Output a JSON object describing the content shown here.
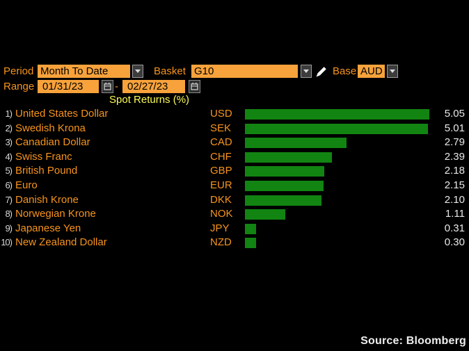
{
  "controls": {
    "period_label": "Period",
    "period_value": "Month To Date",
    "basket_label": "Basket",
    "basket_value": "G10",
    "base_label": "Base",
    "base_value": "AUD",
    "range_label": "Range",
    "range_start": "01/31/23",
    "range_separator": "-",
    "range_end": "02/27/23"
  },
  "icons": {
    "dropdown": "chevron-down-icon",
    "edit": "pencil-icon",
    "calendar": "calendar-icon"
  },
  "chart_data": {
    "type": "bar",
    "orientation": "horizontal",
    "title": "Spot Returns (%)",
    "xlabel": "",
    "ylabel": "",
    "xlim": [
      0,
      5.05
    ],
    "grid": false,
    "bar_color": "#128412",
    "value_decimals": 2,
    "categories": [
      "United States Dollar",
      "Swedish Krona",
      "Canadian Dollar",
      "Swiss Franc",
      "British Pound",
      "Euro",
      "Danish Krone",
      "Norwegian Krone",
      "Japanese Yen",
      "New Zealand Dollar"
    ],
    "codes": [
      "USD",
      "SEK",
      "CAD",
      "CHF",
      "GBP",
      "EUR",
      "DKK",
      "NOK",
      "JPY",
      "NZD"
    ],
    "values": [
      5.05,
      5.01,
      2.79,
      2.39,
      2.18,
      2.15,
      2.1,
      1.11,
      0.31,
      0.3
    ],
    "rows": [
      {
        "rank": "1)",
        "name": "United States Dollar",
        "code": "USD",
        "value": 5.05
      },
      {
        "rank": "2)",
        "name": "Swedish Krona",
        "code": "SEK",
        "value": 5.01
      },
      {
        "rank": "3)",
        "name": "Canadian Dollar",
        "code": "CAD",
        "value": 2.79
      },
      {
        "rank": "4)",
        "name": "Swiss Franc",
        "code": "CHF",
        "value": 2.39
      },
      {
        "rank": "5)",
        "name": "British Pound",
        "code": "GBP",
        "value": 2.18
      },
      {
        "rank": "6)",
        "name": "Euro",
        "code": "EUR",
        "value": 2.15
      },
      {
        "rank": "7)",
        "name": "Danish Krone",
        "code": "DKK",
        "value": 2.1
      },
      {
        "rank": "8)",
        "name": "Norwegian Krone",
        "code": "NOK",
        "value": 1.11
      },
      {
        "rank": "9)",
        "name": "Japanese Yen",
        "code": "JPY",
        "value": 0.31
      },
      {
        "rank": "10)",
        "name": "New Zealand Dollar",
        "code": "NZD",
        "value": 0.3
      }
    ]
  },
  "footer": {
    "source": "Source: Bloomberg"
  },
  "colors": {
    "background": "#000000",
    "field_amber": "#f7a23b",
    "label_orange": "#f7941d",
    "title_yellow": "#fbfb54",
    "bar_green": "#128412",
    "value_white": "#e9e9e9"
  }
}
